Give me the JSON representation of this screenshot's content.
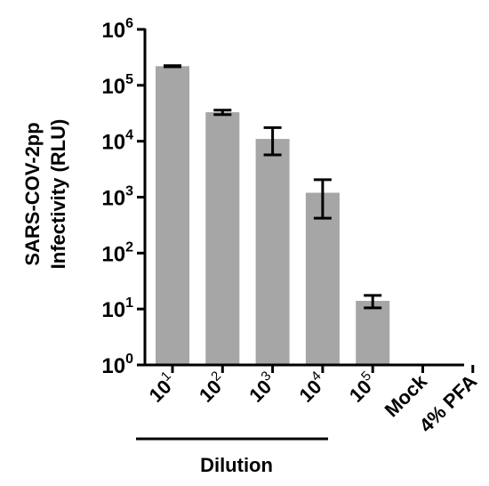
{
  "chart_data": {
    "type": "bar",
    "y_scale": "log10",
    "ylim": [
      1,
      1000000
    ],
    "ylabel_lines": [
      "SARS-COV-2pp",
      "Infectivity (RLU)"
    ],
    "y_ticks": [
      {
        "base": "10",
        "exp": "0",
        "value": 1
      },
      {
        "base": "10",
        "exp": "1",
        "value": 10
      },
      {
        "base": "10",
        "exp": "2",
        "value": 100
      },
      {
        "base": "10",
        "exp": "3",
        "value": 1000
      },
      {
        "base": "10",
        "exp": "4",
        "value": 10000
      },
      {
        "base": "10",
        "exp": "5",
        "value": 100000
      },
      {
        "base": "10",
        "exp": "6",
        "value": 1000000
      }
    ],
    "categories": [
      {
        "base": "10",
        "exp": "1",
        "label": ""
      },
      {
        "base": "10",
        "exp": "2",
        "label": ""
      },
      {
        "base": "10",
        "exp": "3",
        "label": ""
      },
      {
        "base": "10",
        "exp": "4",
        "label": ""
      },
      {
        "base": "10",
        "exp": "5",
        "label": ""
      },
      {
        "base": "",
        "exp": "",
        "label": "Mock"
      },
      {
        "base": "",
        "exp": "",
        "label": "4% PFA"
      }
    ],
    "values": [
      220000,
      33000,
      11000,
      1200,
      14,
      null,
      null
    ],
    "error_low": [
      215000,
      30000,
      5700,
      420,
      10.5,
      null,
      null
    ],
    "error_high": [
      225000,
      36000,
      17500,
      2050,
      17.5,
      null,
      null
    ],
    "group_bracket": {
      "label": "Dilution",
      "from_index": 0,
      "to_index": 4
    },
    "bar_color": "#a6a6a6",
    "grid": false
  }
}
